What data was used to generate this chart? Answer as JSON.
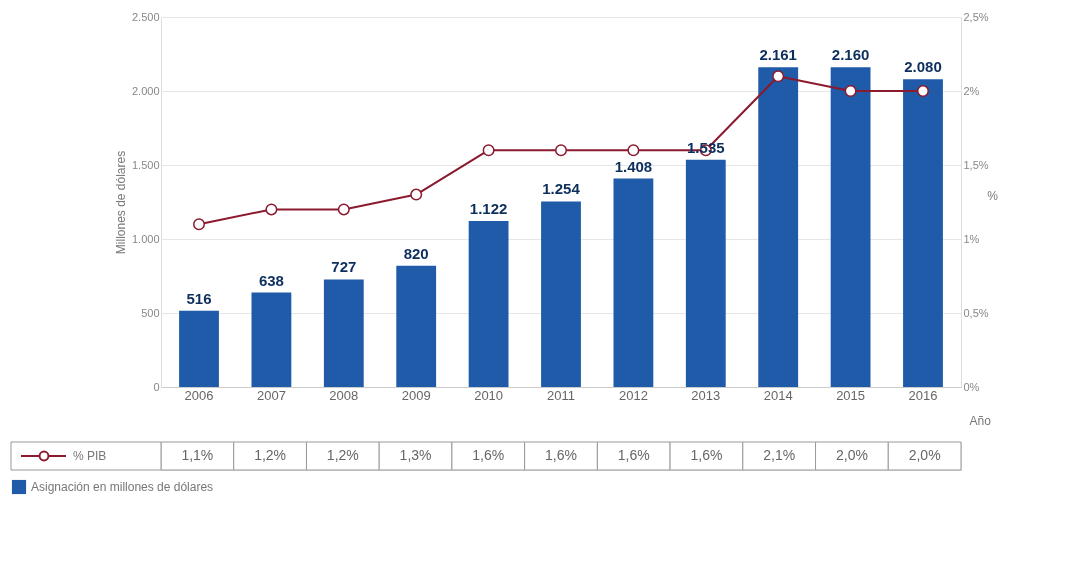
{
  "chart_data": {
    "type": "bar",
    "categories": [
      "2006",
      "2007",
      "2008",
      "2009",
      "2010",
      "2011",
      "2012",
      "2013",
      "2014",
      "2015",
      "2016"
    ],
    "xlabel": "Año",
    "ylabel": "Millones de dólares",
    "y2label": "%",
    "ylim": [
      0,
      2500
    ],
    "yticks": [
      0,
      500,
      {
        "value": 1000,
        "label": "1.000"
      },
      {
        "value": 1500,
        "label": "1.500"
      },
      {
        "value": 2000,
        "label": "2.000"
      },
      {
        "value": 2500,
        "label": "2.500"
      }
    ],
    "y2lim": [
      0,
      2.5
    ],
    "y2ticks": [
      {
        "value": 0,
        "label": "0%"
      },
      {
        "value": 0.5,
        "label": "0,5%"
      },
      {
        "value": 1,
        "label": "1%"
      },
      {
        "value": 1.5,
        "label": "1,5%"
      },
      {
        "value": 2,
        "label": "2%"
      },
      {
        "value": 2.5,
        "label": "2,5%"
      }
    ],
    "grid": "y",
    "legend": "bottom",
    "series": [
      {
        "name": "Asignación en millones de dólares",
        "color": "#1f5ba8",
        "values": [
          516,
          638,
          727,
          820,
          1122,
          1254,
          1408,
          1535,
          2161,
          2160,
          2080
        ],
        "value_labels": [
          "516",
          "638",
          "727",
          "820",
          "1.122",
          "1.254",
          "1.408",
          "1.535",
          "2.161",
          "2.160",
          "2.080"
        ]
      },
      {
        "name": "% PIB",
        "type": "line",
        "axis": "y2",
        "color": "#8b1a2e",
        "marker": "circle",
        "line_style": "solid",
        "values": [
          1.1,
          1.2,
          1.2,
          1.3,
          1.6,
          1.6,
          1.6,
          1.6,
          2.1,
          2.0,
          2.0
        ],
        "value_labels": [
          "1,1%",
          "1,2%",
          "1,2%",
          "1,3%",
          "1,6%",
          "1,6%",
          "1,6%",
          "1,6%",
          "2,1%",
          "2,0%",
          "2,0%"
        ]
      }
    ]
  }
}
